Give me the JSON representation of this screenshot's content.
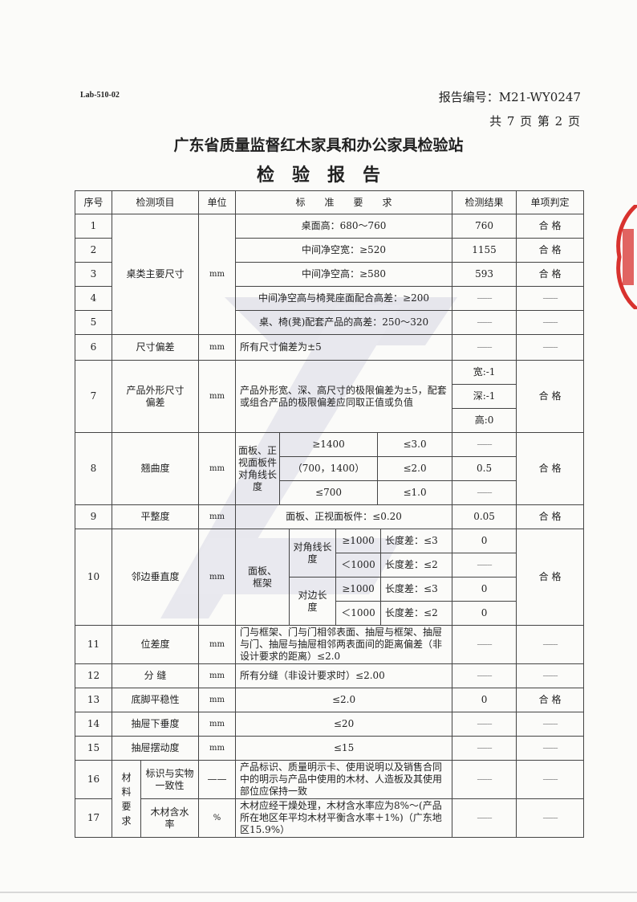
{
  "header": {
    "lab_code": "Lab-510-02",
    "report_no": "报告编号：M21-WY0247",
    "pages": "共 7 页 第 2 页",
    "org": "广东省质量监督红木家具和办公家具检验站",
    "title": "检验报告"
  },
  "columns": [
    "序号",
    "检测项目",
    "单位",
    "标　　准　　要　　求",
    "检测结果",
    "单项判定"
  ],
  "rows": [
    {
      "no": "1",
      "item": "桌类主要尺寸",
      "unit": "mm",
      "req": "桌面高：680～760",
      "result": "760",
      "verdict": "合 格"
    },
    {
      "no": "2",
      "req": "中间净空宽：≥520",
      "result": "1155",
      "verdict": "合 格"
    },
    {
      "no": "3",
      "req": "中间净空高：≥580",
      "result": "593",
      "verdict": "合 格"
    },
    {
      "no": "4",
      "req": "中间净空高与椅凳座面配合高差：≥200",
      "result": "------",
      "verdict": "------"
    },
    {
      "no": "5",
      "req": "桌、椅(凳)配套产品的高差：250～320",
      "result": "------",
      "verdict": "------"
    },
    {
      "no": "6",
      "item": "尺寸偏差",
      "unit": "mm",
      "req": "所有尺寸偏差为±5",
      "result": "------",
      "verdict": "------"
    },
    {
      "no": "7",
      "item": "产品外形尺寸偏差",
      "unit": "mm",
      "req": "产品外形宽、深、高尺寸的极限偏差为±5，配套或组合产品的极限偏差应同取正值或负值",
      "results": [
        "宽:-1",
        "深:-1",
        "高:0"
      ],
      "verdict": "合 格"
    },
    {
      "no": "8",
      "item": "翘曲度",
      "unit": "mm",
      "label": "面板、正视面板件对角线长度",
      "sub": [
        {
          "range": "≥1400",
          "limit": "≤3.0",
          "result": "------"
        },
        {
          "range": "（700，1400）",
          "limit": "≤2.0",
          "result": "0.5"
        },
        {
          "range": "≤700",
          "limit": "≤1.0",
          "result": "------"
        }
      ],
      "verdict": "合 格"
    },
    {
      "no": "9",
      "item": "平整度",
      "unit": "mm",
      "req": "面板、正视面板件：≤0.20",
      "result": "0.05",
      "verdict": "合 格"
    },
    {
      "no": "10",
      "item": "邻边垂直度",
      "unit": "mm",
      "label": "面板、框架",
      "groups": [
        "对角线长度",
        "对边长度"
      ],
      "sub": [
        {
          "range": "≥1000",
          "limit": "长度差：≤3",
          "result": "0"
        },
        {
          "range": "＜1000",
          "limit": "长度差：≤2",
          "result": "------"
        },
        {
          "range": "≥1000",
          "limit": "长度差：≤3",
          "result": "0"
        },
        {
          "range": "＜1000",
          "limit": "长度差：≤2",
          "result": "0"
        }
      ],
      "verdict": "合 格"
    },
    {
      "no": "11",
      "item": "位差度",
      "unit": "mm",
      "req": "门与框架、门与门相邻表面、抽屉与框架、抽屉与门、抽屉与抽屉相邻两表面间的距离偏差（非设计要求的距离）≤2.0",
      "result": "------",
      "verdict": "------"
    },
    {
      "no": "12",
      "item": "分 缝",
      "unit": "mm",
      "req": "所有分缝（非设计要求时）≤2.00",
      "result": "------",
      "verdict": "------"
    },
    {
      "no": "13",
      "item": "底脚平稳性",
      "unit": "mm",
      "req": "≤2.0",
      "result": "0",
      "verdict": "合 格"
    },
    {
      "no": "14",
      "item": "抽屉下垂度",
      "unit": "mm",
      "req": "≤20",
      "result": "------",
      "verdict": "------"
    },
    {
      "no": "15",
      "item": "抽屉摆动度",
      "unit": "mm",
      "req": "≤15",
      "result": "------",
      "verdict": "------"
    },
    {
      "no": "16",
      "group": "材料要求",
      "item": "标识与实物一致性",
      "unit": "——",
      "req": "产品标识、质量明示卡、使用说明以及销售合同中的明示与产品中使用的木材、人造板及其使用部位应保持一致",
      "result": "------",
      "verdict": "------"
    },
    {
      "no": "17",
      "item": "木材含水率",
      "unit": "%",
      "req": "木材应经干燥处理，木材含水率应为8%～(产品所在地区年平均木材平衡含水率＋1%)（广东地区15.9%）",
      "result": "------",
      "verdict": "------"
    }
  ],
  "colors": {
    "stamp": "#d8322e",
    "watermark": "#e4e4ea"
  }
}
